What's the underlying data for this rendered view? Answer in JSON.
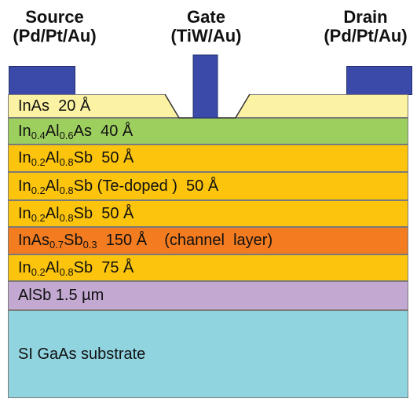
{
  "contacts": {
    "source": {
      "name": "Source",
      "material": "(Pd/Pt/Au)"
    },
    "gate": {
      "name": "Gate",
      "material": "(TiW/Au)"
    },
    "drain": {
      "name": "Drain",
      "material": "(Pd/Pt/Au)"
    }
  },
  "layers": [
    {
      "id": "inas-cap",
      "color": "#fbf3a3",
      "parts": [
        [
          "InAs  20 Å",
          ""
        ]
      ]
    },
    {
      "id": "inalas",
      "color": "#9dcf5f",
      "parts": [
        [
          "In",
          ""
        ],
        [
          "0.4",
          "sub"
        ],
        [
          "Al",
          ""
        ],
        [
          "0.6",
          "sub"
        ],
        [
          "As  40 Å",
          ""
        ]
      ]
    },
    {
      "id": "inalsb-1",
      "color": "#fcc40c",
      "parts": [
        [
          "In",
          ""
        ],
        [
          "0.2",
          "sub"
        ],
        [
          "Al",
          ""
        ],
        [
          "0.8",
          "sub"
        ],
        [
          "Sb  50 Å",
          ""
        ]
      ]
    },
    {
      "id": "inalsb-te",
      "color": "#fcc40c",
      "parts": [
        [
          "In",
          ""
        ],
        [
          "0.2",
          "sub"
        ],
        [
          "Al",
          ""
        ],
        [
          "0.8",
          "sub"
        ],
        [
          "Sb (Te-doped )  50 Å",
          ""
        ]
      ]
    },
    {
      "id": "inalsb-2",
      "color": "#fcc40c",
      "parts": [
        [
          "In",
          ""
        ],
        [
          "0.2",
          "sub"
        ],
        [
          "Al",
          ""
        ],
        [
          "0.8",
          "sub"
        ],
        [
          "Sb  50 Å",
          ""
        ]
      ]
    },
    {
      "id": "channel",
      "color": "#f47c20",
      "parts": [
        [
          "InAs",
          ""
        ],
        [
          "0.7",
          "sub"
        ],
        [
          "Sb",
          ""
        ],
        [
          "0.3",
          "sub"
        ],
        [
          "  150 Å    (channel  layer)",
          ""
        ]
      ]
    },
    {
      "id": "inalsb-3",
      "color": "#fcc40c",
      "parts": [
        [
          "In",
          ""
        ],
        [
          "0.2",
          "sub"
        ],
        [
          "Al",
          ""
        ],
        [
          "0.8",
          "sub"
        ],
        [
          "Sb  75 Å",
          ""
        ]
      ]
    },
    {
      "id": "alsb-buffer",
      "color": "#c3a8d1",
      "parts": [
        [
          "AlSb 1.5 µm",
          ""
        ]
      ]
    },
    {
      "id": "substrate",
      "color": "#90d4e0",
      "parts": [
        [
          "SI GaAs substrate",
          ""
        ]
      ]
    }
  ],
  "colors": {
    "metal": "#3b4aa8",
    "border": "#7a7a7a"
  }
}
